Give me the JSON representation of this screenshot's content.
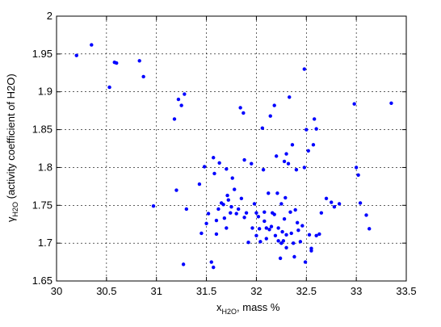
{
  "chart_data": {
    "type": "scatter",
    "xlabel": "x",
    "xlabel_sub": "H2O",
    "xlabel_rest": ", mass %",
    "ylabel": "γ",
    "ylabel_sub": "H2O",
    "ylabel_rest": " (activity coefficient of H2O)",
    "xlim": [
      30,
      33.5
    ],
    "ylim": [
      1.65,
      2
    ],
    "xticks": [
      30,
      30.5,
      31,
      31.5,
      32,
      32.5,
      33,
      33.5
    ],
    "xtick_labels": [
      "30",
      "30.5",
      "31",
      "31.5",
      "32",
      "32.5",
      "33",
      "33.5"
    ],
    "yticks": [
      1.65,
      1.7,
      1.75,
      1.8,
      1.85,
      1.9,
      1.95,
      2
    ],
    "ytick_labels": [
      "1.65",
      "1.7",
      "1.75",
      "1.8",
      "1.85",
      "1.9",
      "1.95",
      "2"
    ],
    "grid": true,
    "marker_color": "#0000ff",
    "points": [
      [
        30.2,
        1.948
      ],
      [
        30.35,
        1.962
      ],
      [
        30.53,
        1.906
      ],
      [
        30.58,
        1.939
      ],
      [
        30.6,
        1.938
      ],
      [
        30.83,
        1.941
      ],
      [
        30.87,
        1.92
      ],
      [
        30.97,
        1.749
      ],
      [
        31.18,
        1.864
      ],
      [
        31.2,
        1.77
      ],
      [
        31.22,
        1.89
      ],
      [
        31.25,
        1.882
      ],
      [
        31.27,
        1.672
      ],
      [
        31.3,
        1.745
      ],
      [
        31.28,
        1.897
      ],
      [
        31.43,
        1.778
      ],
      [
        31.45,
        1.713
      ],
      [
        31.48,
        1.801
      ],
      [
        31.5,
        1.726
      ],
      [
        31.52,
        1.739
      ],
      [
        31.55,
        1.675
      ],
      [
        31.57,
        1.668
      ],
      [
        31.57,
        1.813
      ],
      [
        31.58,
        1.792
      ],
      [
        31.6,
        1.73
      ],
      [
        31.6,
        1.712
      ],
      [
        31.62,
        1.745
      ],
      [
        31.63,
        1.806
      ],
      [
        31.65,
        1.753
      ],
      [
        31.67,
        1.751
      ],
      [
        31.68,
        1.733
      ],
      [
        31.7,
        1.72
      ],
      [
        31.7,
        1.798
      ],
      [
        31.71,
        1.763
      ],
      [
        31.72,
        1.757
      ],
      [
        31.74,
        1.74
      ],
      [
        31.75,
        1.748
      ],
      [
        31.76,
        1.786
      ],
      [
        31.78,
        1.771
      ],
      [
        31.8,
        1.739
      ],
      [
        31.82,
        1.745
      ],
      [
        31.84,
        1.879
      ],
      [
        31.85,
        1.759
      ],
      [
        31.87,
        1.872
      ],
      [
        31.88,
        1.734
      ],
      [
        31.88,
        1.81
      ],
      [
        31.9,
        1.74
      ],
      [
        31.92,
        1.701
      ],
      [
        31.95,
        1.805
      ],
      [
        31.96,
        1.72
      ],
      [
        31.98,
        1.752
      ],
      [
        32.0,
        1.74
      ],
      [
        32.0,
        1.71
      ],
      [
        32.02,
        1.735
      ],
      [
        32.03,
        1.719
      ],
      [
        32.04,
        1.702
      ],
      [
        32.06,
        1.852
      ],
      [
        32.07,
        1.797
      ],
      [
        32.08,
        1.741
      ],
      [
        32.08,
        1.729
      ],
      [
        32.1,
        1.706
      ],
      [
        32.1,
        1.72
      ],
      [
        32.12,
        1.766
      ],
      [
        32.13,
        1.718
      ],
      [
        32.14,
        1.868
      ],
      [
        32.15,
        1.722
      ],
      [
        32.16,
        1.74
      ],
      [
        32.18,
        1.882
      ],
      [
        32.18,
        1.738
      ],
      [
        32.19,
        1.71
      ],
      [
        32.2,
        1.815
      ],
      [
        32.21,
        1.766
      ],
      [
        32.22,
        1.703
      ],
      [
        32.22,
        1.72
      ],
      [
        32.24,
        1.68
      ],
      [
        32.25,
        1.7
      ],
      [
        32.25,
        1.752
      ],
      [
        32.26,
        1.715
      ],
      [
        32.27,
        1.703
      ],
      [
        32.28,
        1.808
      ],
      [
        32.28,
        1.732
      ],
      [
        32.29,
        1.76
      ],
      [
        32.3,
        1.711
      ],
      [
        32.3,
        1.818
      ],
      [
        32.3,
        1.694
      ],
      [
        32.32,
        1.805
      ],
      [
        32.33,
        1.893
      ],
      [
        32.34,
        1.741
      ],
      [
        32.35,
        1.713
      ],
      [
        32.36,
        1.83
      ],
      [
        32.37,
        1.7
      ],
      [
        32.38,
        1.682
      ],
      [
        32.39,
        1.744
      ],
      [
        32.4,
        1.797
      ],
      [
        32.41,
        1.727
      ],
      [
        32.42,
        1.717
      ],
      [
        32.44,
        1.702
      ],
      [
        32.46,
        1.723
      ],
      [
        32.48,
        1.93
      ],
      [
        32.48,
        1.8
      ],
      [
        32.49,
        1.675
      ],
      [
        32.5,
        1.85
      ],
      [
        32.52,
        1.822
      ],
      [
        32.53,
        1.711
      ],
      [
        32.55,
        1.69
      ],
      [
        32.55,
        1.693
      ],
      [
        32.57,
        1.83
      ],
      [
        32.58,
        1.864
      ],
      [
        32.6,
        1.851
      ],
      [
        32.6,
        1.71
      ],
      [
        32.63,
        1.712
      ],
      [
        32.65,
        1.74
      ],
      [
        32.7,
        1.759
      ],
      [
        32.75,
        1.754
      ],
      [
        32.78,
        1.748
      ],
      [
        32.83,
        1.752
      ],
      [
        32.98,
        1.884
      ],
      [
        33.0,
        1.8
      ],
      [
        33.02,
        1.79
      ],
      [
        33.04,
        1.753
      ],
      [
        33.1,
        1.737
      ],
      [
        33.13,
        1.719
      ],
      [
        33.35,
        1.885
      ]
    ]
  }
}
